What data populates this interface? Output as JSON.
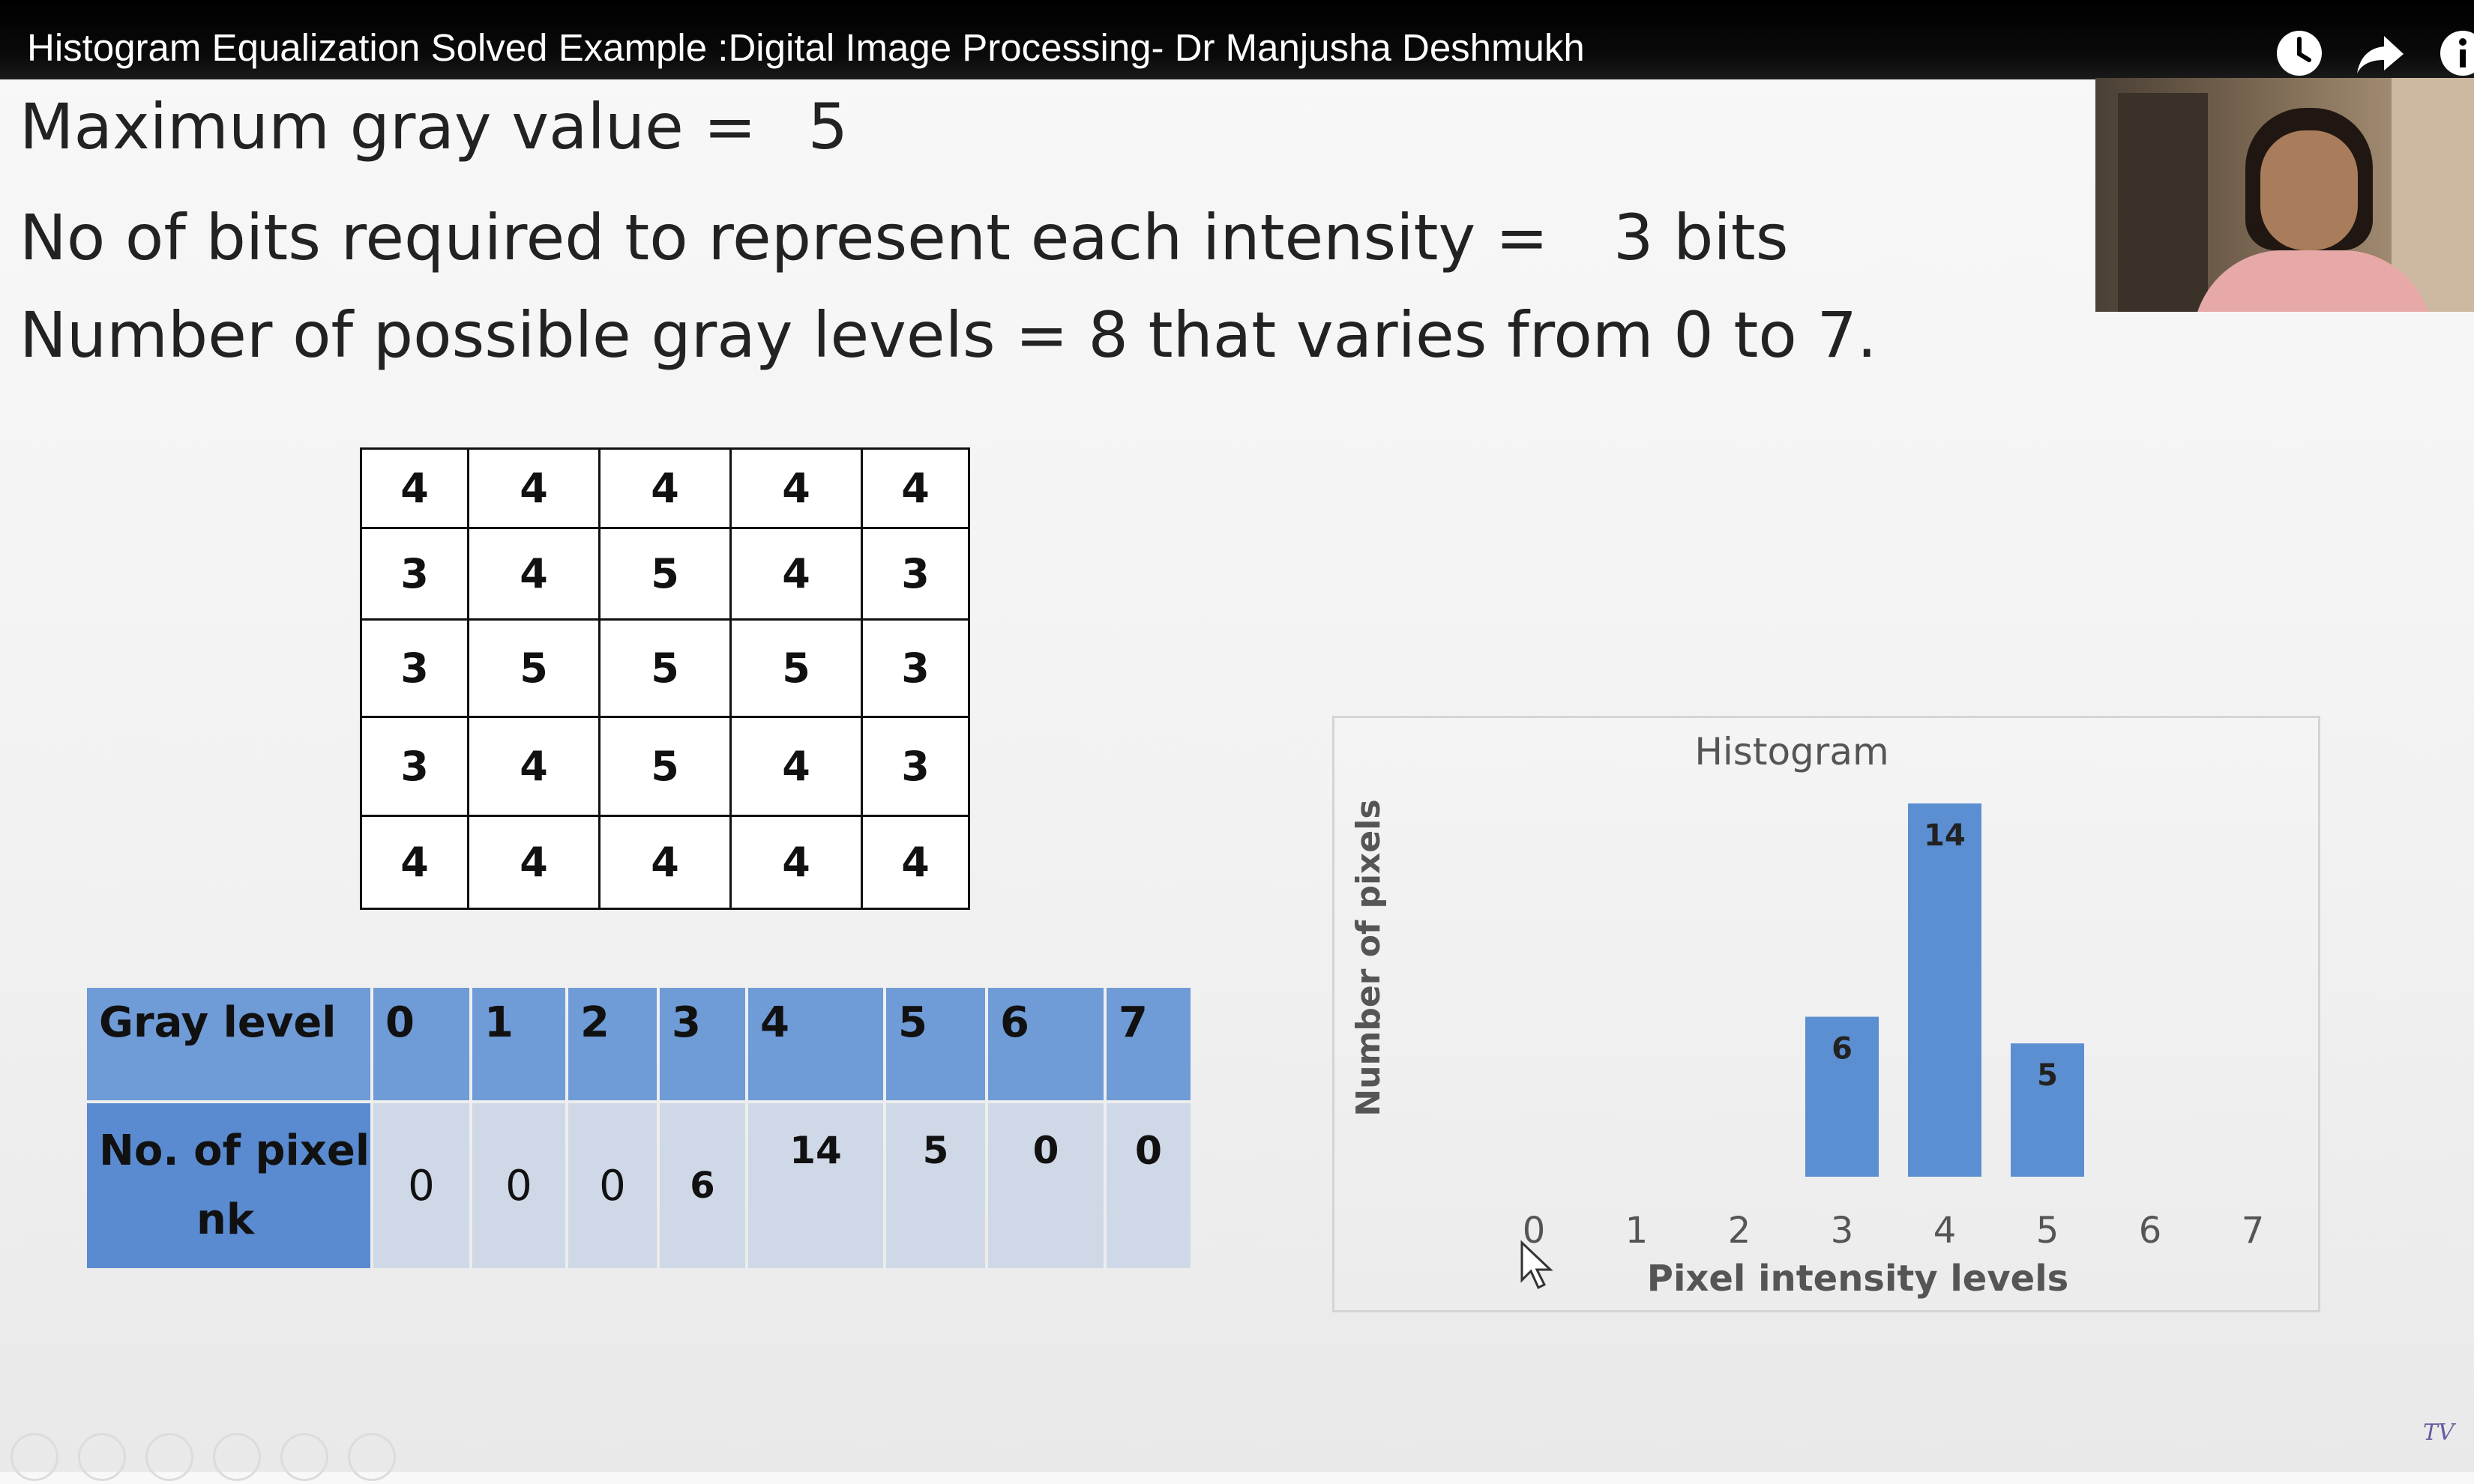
{
  "video": {
    "title": "Histogram Equalization Solved Example :Digital Image Processing- Dr Manjusha Deshmukh",
    "icons": [
      "clock-icon",
      "share-icon",
      "info-icon"
    ]
  },
  "slide": {
    "line1_label": "Maximum gray value = ",
    "line1_value": "5",
    "line2_label": "No of bits required to represent each intensity = ",
    "line2_value": "3 bits",
    "line3_label": "Number of possible gray levels = ",
    "line3_value": "8 that varies from 0 to 7.",
    "matrix": [
      [
        "4",
        "4",
        "4",
        "4",
        "4"
      ],
      [
        "3",
        "4",
        "5",
        "4",
        "3"
      ],
      [
        "3",
        "5",
        "5",
        "5",
        "3"
      ],
      [
        "3",
        "4",
        "5",
        "4",
        "3"
      ],
      [
        "4",
        "4",
        "4",
        "4",
        "4"
      ]
    ],
    "freq_table": {
      "row1_label": "Gray level",
      "row2_label_line1": "No. of pixel",
      "row2_label_line2": "nk",
      "levels": [
        "0",
        "1",
        "2",
        "3",
        "4",
        "5",
        "6",
        "7"
      ],
      "counts": [
        "0",
        "0",
        "0",
        "6",
        "14",
        "5",
        "0",
        "0"
      ]
    }
  },
  "chart_data": {
    "type": "bar",
    "title": "Histogram",
    "xlabel": "Pixel intensity levels",
    "ylabel": "Number of pixels",
    "categories": [
      "0",
      "1",
      "2",
      "3",
      "4",
      "5",
      "6",
      "7"
    ],
    "values": [
      0,
      0,
      0,
      6,
      14,
      5,
      0,
      0
    ],
    "data_labels": [
      "",
      "",
      "",
      "6",
      "14",
      "5",
      "",
      ""
    ],
    "ylim": [
      0,
      14
    ],
    "bar_color": "#5b8fd1",
    "grid": false
  }
}
